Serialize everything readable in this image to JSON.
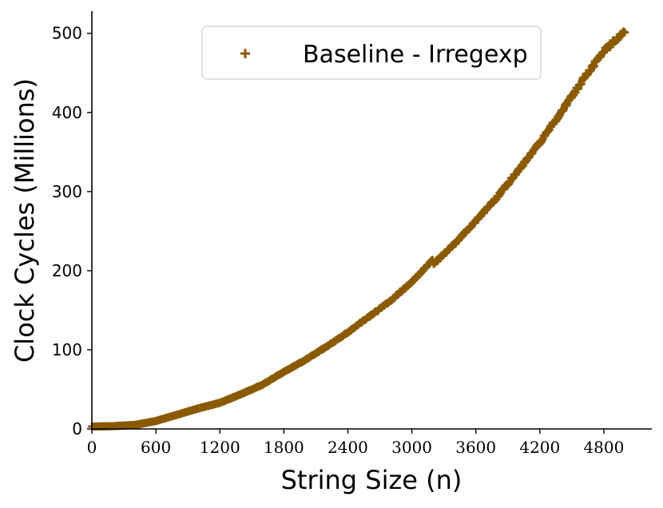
{
  "chart_data": {
    "type": "scatter",
    "title": "",
    "xlabel": "String Size (n)",
    "ylabel": "Clock Cycles (Millions)",
    "xlim": [
      0,
      5250
    ],
    "ylim": [
      0,
      528
    ],
    "x_ticks": [
      0,
      600,
      1200,
      1800,
      2400,
      3000,
      3600,
      4200,
      4800
    ],
    "x_tick_labels": [
      "0",
      "600",
      "1200",
      "1800",
      "2400",
      "3000",
      "3600",
      "4200",
      "4800"
    ],
    "y_ticks": [
      0,
      100,
      200,
      300,
      400,
      500
    ],
    "y_tick_labels": [
      "0",
      "100",
      "200",
      "300",
      "400",
      "500"
    ],
    "grid": false,
    "legend_position": "top-center",
    "series": [
      {
        "name": "Baseline - Irregexp",
        "marker": "+",
        "color": "#8B5A00",
        "x": [
          0,
          200,
          400,
          600,
          800,
          1000,
          1200,
          1400,
          1600,
          1800,
          2000,
          2200,
          2400,
          2600,
          2800,
          3000,
          3200,
          3200,
          3400,
          3600,
          3800,
          4000,
          4200,
          4400,
          4600,
          4800,
          5000
        ],
        "y": [
          3,
          3.5,
          5,
          10,
          18,
          26,
          33,
          44,
          56,
          72,
          87,
          104,
          122,
          142,
          162,
          186,
          214,
          208,
          234,
          263,
          293,
          327,
          362,
          400,
          440,
          478,
          502
        ]
      }
    ]
  }
}
